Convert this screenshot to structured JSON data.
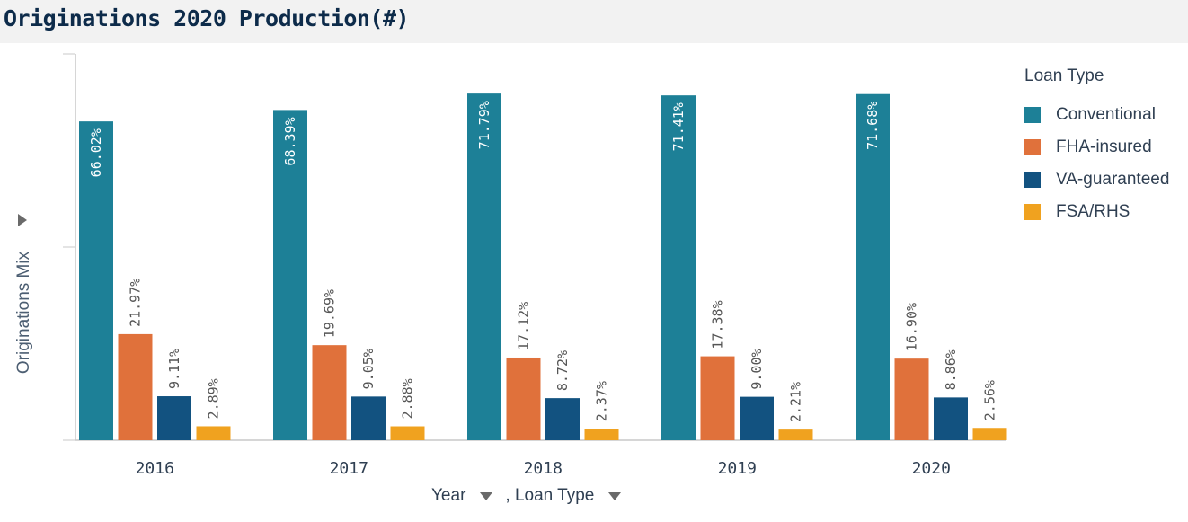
{
  "title": "Originations 2020 Production(#)",
  "chart_data": {
    "type": "bar",
    "title": "Originations 2020 Production(#)",
    "ylabel": "Originations Mix",
    "xlabel": "Year",
    "xlabel_secondary": ", Loan Type",
    "categories": [
      "2016",
      "2017",
      "2018",
      "2019",
      "2020"
    ],
    "ylim": [
      0,
      80
    ],
    "grid": false,
    "legend_title": "Loan Type",
    "legend_position": "right",
    "series": [
      {
        "name": "Conventional",
        "color": "#1d8097",
        "values": [
          66.02,
          68.39,
          71.79,
          71.41,
          71.68
        ],
        "labels": [
          "66.02%",
          "68.39%",
          "71.79%",
          "71.41%",
          "71.68%"
        ]
      },
      {
        "name": "FHA-insured",
        "color": "#e0713b",
        "values": [
          21.97,
          19.69,
          17.12,
          17.38,
          16.9
        ],
        "labels": [
          "21.97%",
          "19.69%",
          "17.12%",
          "17.38%",
          "16.90%"
        ]
      },
      {
        "name": "VA-guaranteed",
        "color": "#125280",
        "values": [
          9.11,
          9.05,
          8.72,
          9.0,
          8.86
        ],
        "labels": [
          "9.11%",
          "9.05%",
          "8.72%",
          "9.00%",
          "8.86%"
        ]
      },
      {
        "name": "FSA/RHS",
        "color": "#f0a21f",
        "values": [
          2.89,
          2.88,
          2.37,
          2.21,
          2.56
        ],
        "labels": [
          "2.89%",
          "2.88%",
          "2.37%",
          "2.21%",
          "2.56%"
        ]
      }
    ]
  }
}
